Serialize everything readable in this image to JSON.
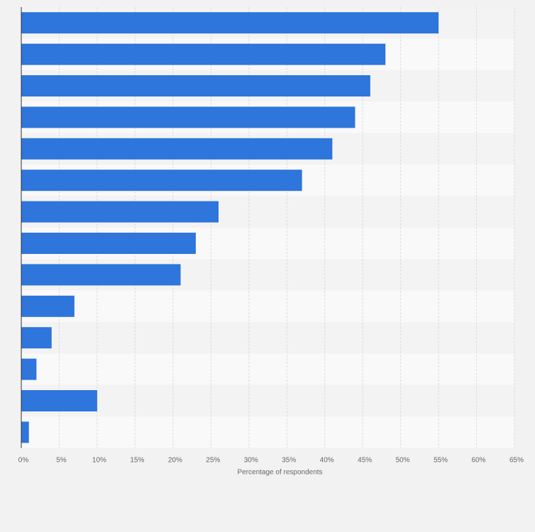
{
  "chart_data": {
    "type": "bar",
    "orientation": "horizontal",
    "categories": [
      "",
      "",
      "",
      "",
      "",
      "",
      "",
      "",
      "",
      "",
      "",
      "",
      "",
      ""
    ],
    "values": [
      55,
      48,
      46,
      44,
      41,
      37,
      26,
      23,
      21,
      7,
      4,
      2,
      10,
      1
    ],
    "xlabel": "Percentage of respondents",
    "ylabel": "",
    "xlim": [
      0,
      65
    ],
    "ticks": [
      "0%",
      "5%",
      "10%",
      "15%",
      "20%",
      "25%",
      "30%",
      "35%",
      "40%",
      "45%",
      "50%",
      "55%",
      "60%",
      "65%"
    ],
    "grid": true,
    "bar_color": "#2e75dc",
    "band_colors": [
      "#f3f3f3",
      "#f9f9f9"
    ]
  }
}
